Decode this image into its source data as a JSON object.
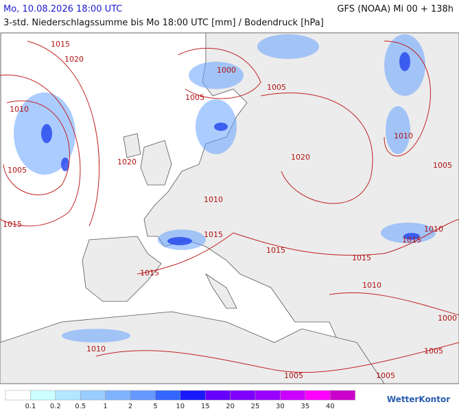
{
  "header": {
    "valid_time": "Mo, 10.08.2026 18:00 UTC",
    "model_run": "GFS (NOAA) Mi 00 + 138h",
    "subtitle": "3-std. Niederschlagssumme bis Mo 18:00 UTC [mm] / Bodendruck [hPa]"
  },
  "isobar_labels": [
    1015,
    1020,
    1000,
    1005,
    1005,
    1010,
    1010,
    1020,
    1020,
    1005,
    1005,
    1010,
    1015,
    1015,
    1010,
    1015,
    1015,
    1015,
    1015,
    1010,
    1000,
    1010,
    1005,
    1005,
    1005
  ],
  "legend": {
    "labels": [
      0.1,
      0.2,
      0.5,
      1,
      2,
      5,
      10,
      15,
      20,
      25,
      30,
      35,
      40
    ],
    "colors": [
      "#ffffff",
      "#ccffff",
      "#b3e6ff",
      "#99ccff",
      "#80b3ff",
      "#6699ff",
      "#3366ff",
      "#1a1aff",
      "#6600ff",
      "#8000ff",
      "#9900ff",
      "#cc00ff",
      "#ff00ff",
      "#cc00cc"
    ]
  },
  "logo": "WetterKontor"
}
